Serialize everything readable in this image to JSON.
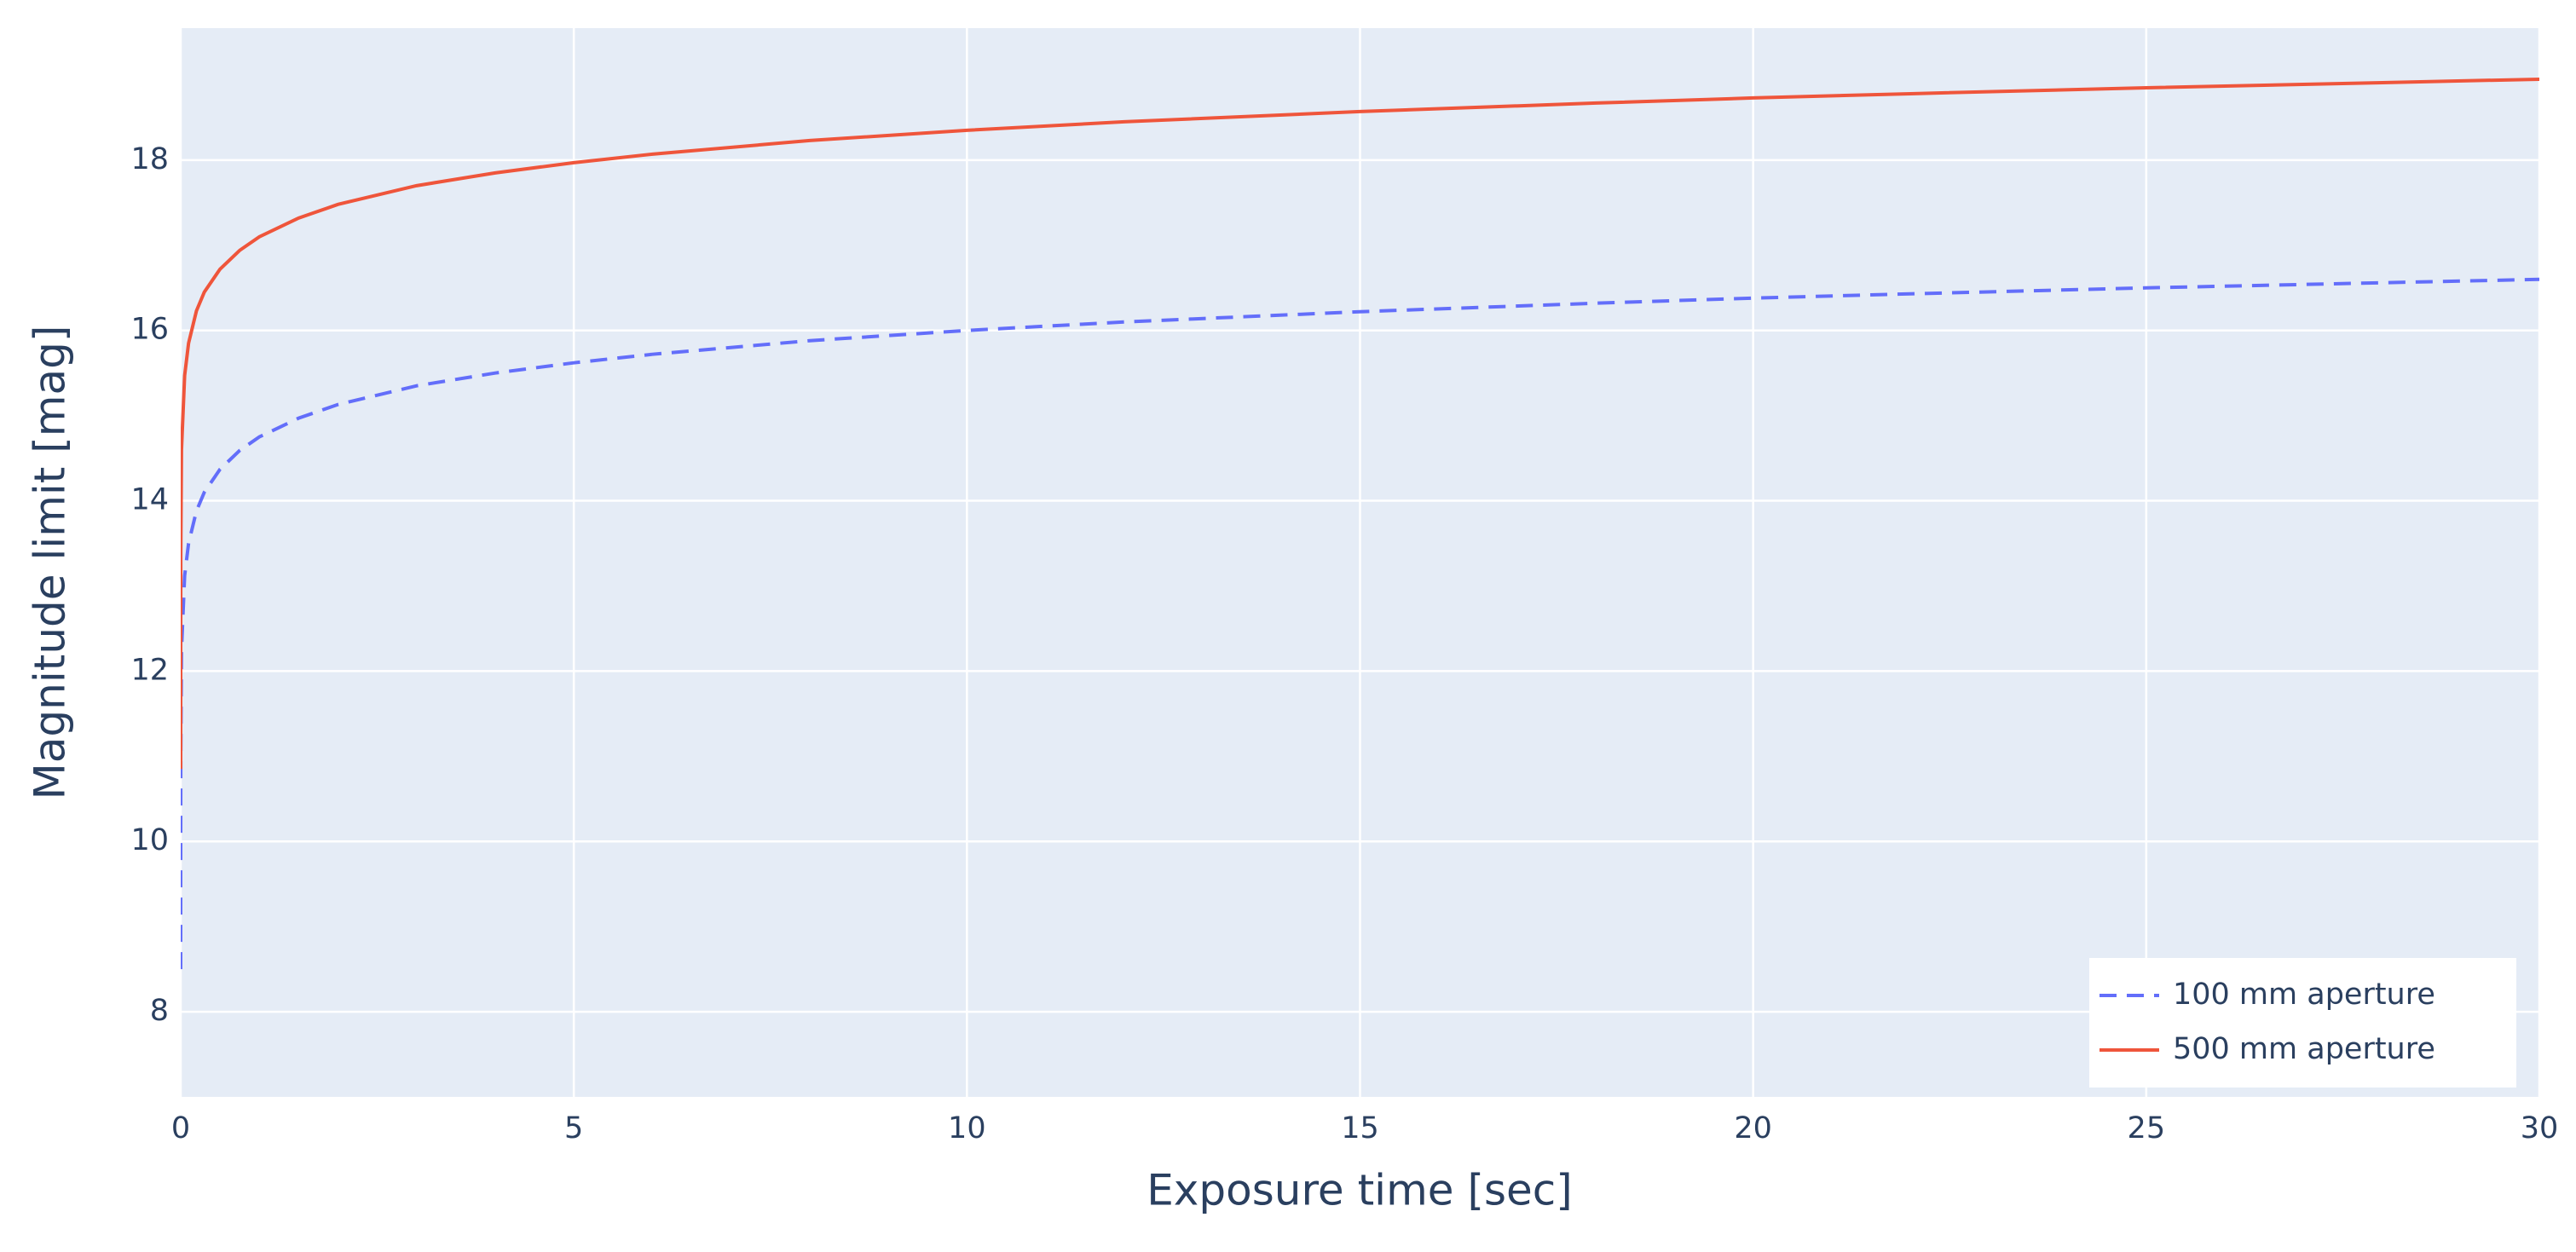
{
  "chart_data": {
    "type": "line",
    "x_label": "Exposure time [sec]",
    "y_label": "Magnitude limit [mag]",
    "x": [
      1e-05,
      0.0001,
      0.001,
      0.01,
      0.05,
      0.1,
      0.2,
      0.3,
      0.5,
      0.75,
      1,
      1.5,
      2,
      3,
      4,
      5,
      6,
      8,
      10,
      12,
      15,
      18,
      20,
      22,
      25,
      28,
      30
    ],
    "series": [
      {
        "name": "100 mm aperture",
        "color": "#636efa",
        "dash": "dash",
        "values": [
          8.5,
          9.75,
          11.0,
          12.25,
          13.12,
          13.5,
          13.88,
          14.1,
          14.37,
          14.59,
          14.75,
          14.97,
          15.13,
          15.35,
          15.5,
          15.62,
          15.72,
          15.88,
          16.0,
          16.1,
          16.22,
          16.32,
          16.38,
          16.43,
          16.5,
          16.56,
          16.6
        ]
      },
      {
        "name": "500 mm aperture",
        "color": "#ef553b",
        "dash": "solid",
        "values": [
          10.85,
          12.1,
          13.35,
          14.6,
          15.47,
          15.85,
          16.23,
          16.45,
          16.72,
          16.94,
          17.1,
          17.32,
          17.48,
          17.7,
          17.85,
          17.97,
          18.07,
          18.23,
          18.35,
          18.45,
          18.57,
          18.67,
          18.73,
          18.78,
          18.85,
          18.91,
          18.95
        ]
      }
    ],
    "xlim": [
      0,
      30
    ],
    "xticks": [
      0,
      5,
      10,
      15,
      20,
      25,
      30
    ],
    "ylim": [
      7.0,
      19.55
    ],
    "yticks": [
      8,
      10,
      12,
      14,
      16,
      18
    ],
    "grid": true,
    "legend": "bottom-right"
  }
}
